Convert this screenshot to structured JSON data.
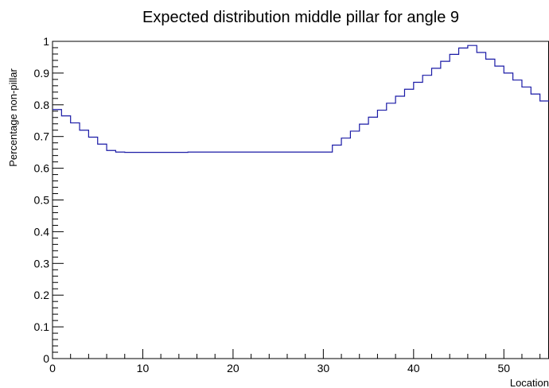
{
  "chart_data": {
    "type": "line",
    "title": "Expected distribution middle pillar for angle 9",
    "xlabel": "Location",
    "ylabel": "Percentage non-pillar",
    "xlim": [
      0,
      55
    ],
    "ylim": [
      0,
      1
    ],
    "grid": false,
    "style": "step",
    "line_color": "#1a1aa6",
    "x_ticks": [
      "0",
      "10",
      "20",
      "30",
      "40",
      "50"
    ],
    "y_ticks": [
      "0",
      "0.1",
      "0.2",
      "0.3",
      "0.4",
      "0.5",
      "0.6",
      "0.7",
      "0.8",
      "0.9",
      "1"
    ],
    "series": [
      {
        "x": [
          0,
          1,
          2,
          3,
          4,
          5,
          6,
          7,
          8,
          9,
          10,
          11,
          12,
          13,
          14,
          15,
          16,
          17,
          18,
          19,
          20,
          21,
          22,
          23,
          24,
          25,
          26,
          27,
          28,
          29,
          30,
          31,
          32,
          33,
          34,
          35,
          36,
          37,
          38,
          39,
          40,
          41,
          42,
          43,
          44,
          45,
          46,
          47,
          48,
          49,
          50,
          51,
          52,
          53,
          54
        ],
        "values": [
          0.785,
          0.765,
          0.743,
          0.72,
          0.698,
          0.676,
          0.656,
          0.651,
          0.65,
          0.65,
          0.65,
          0.65,
          0.65,
          0.65,
          0.65,
          0.651,
          0.651,
          0.651,
          0.651,
          0.651,
          0.651,
          0.651,
          0.651,
          0.651,
          0.651,
          0.651,
          0.651,
          0.651,
          0.651,
          0.651,
          0.651,
          0.673,
          0.695,
          0.717,
          0.739,
          0.761,
          0.783,
          0.805,
          0.827,
          0.849,
          0.871,
          0.893,
          0.915,
          0.937,
          0.959,
          0.979,
          0.987,
          0.965,
          0.944,
          0.922,
          0.9,
          0.878,
          0.856,
          0.834,
          0.812
        ]
      }
    ]
  }
}
